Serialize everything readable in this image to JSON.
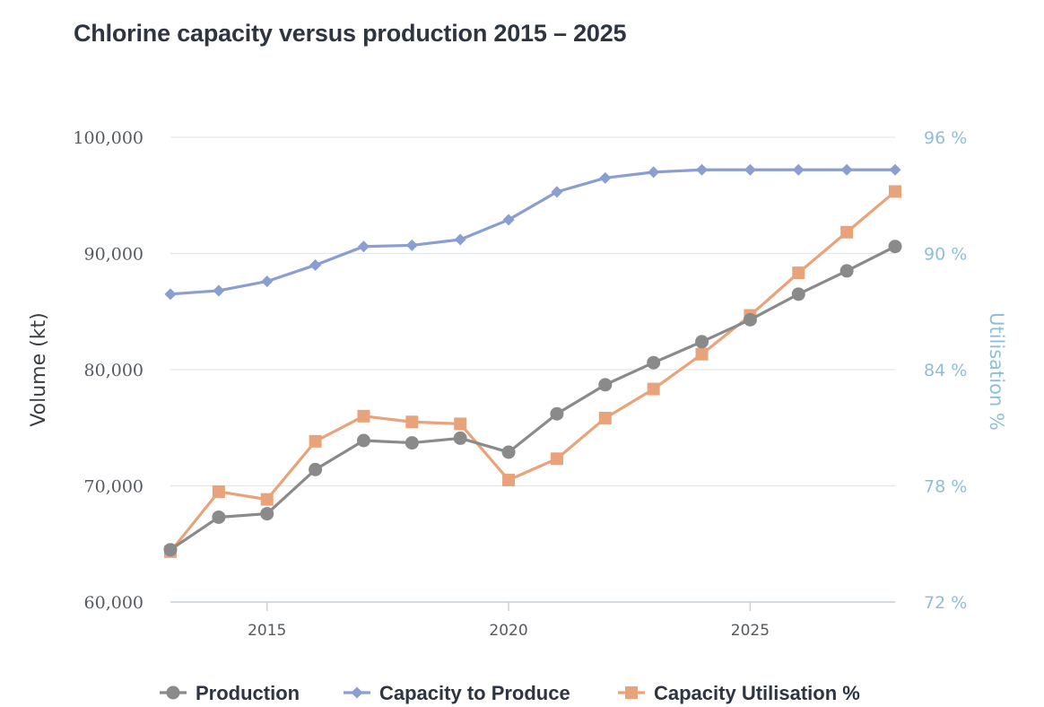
{
  "chart_data": {
    "type": "line",
    "title": "Chlorine capacity versus production 2015 – 2025",
    "xlabel": "",
    "ylabel": "Volume (kt)",
    "y2label": "Utilisation %",
    "x": [
      2013,
      2014,
      2015,
      2016,
      2017,
      2018,
      2019,
      2020,
      2021,
      2022,
      2023,
      2024,
      2025,
      2026,
      2027,
      2028
    ],
    "xticks": [
      2015,
      2020,
      2025
    ],
    "xtick_labels": [
      "2015",
      "2020",
      "2025"
    ],
    "ylim": [
      60000,
      100000
    ],
    "yticks": [
      60000,
      70000,
      80000,
      90000,
      100000
    ],
    "ytick_labels": [
      "60,000",
      "70,000",
      "80,000",
      "90,000",
      "100,000"
    ],
    "y2lim": [
      72,
      96
    ],
    "y2ticks": [
      72,
      78,
      84,
      90,
      96
    ],
    "y2tick_labels": [
      "72 %",
      "78 %",
      "84 %",
      "90 %",
      "96 %"
    ],
    "xlim": [
      2013,
      2028
    ],
    "grid": true,
    "legend_position": "bottom",
    "series": [
      {
        "name": "Production",
        "axis": "left",
        "marker": "circle",
        "color": "#8a8a8a",
        "values": [
          64500,
          67300,
          67600,
          71400,
          73900,
          73700,
          74100,
          72900,
          76200,
          78700,
          80600,
          82400,
          84300,
          86500,
          88500,
          90600
        ]
      },
      {
        "name": "Capacity to Produce",
        "axis": "left",
        "marker": "diamond",
        "color": "#8a9ed1",
        "values": [
          86500,
          86800,
          87600,
          89000,
          90600,
          90700,
          91200,
          92900,
          95300,
          96500,
          97000,
          97200,
          97200,
          97200,
          97200,
          97200
        ]
      },
      {
        "name": "Capacity Utilisation %",
        "axis": "right",
        "marker": "square",
        "color": "#e9a37a",
        "values": [
          74.6,
          77.7,
          77.3,
          80.3,
          81.6,
          81.3,
          81.2,
          78.3,
          79.4,
          81.5,
          83.0,
          84.8,
          86.8,
          89.0,
          91.1,
          93.2
        ]
      }
    ]
  }
}
